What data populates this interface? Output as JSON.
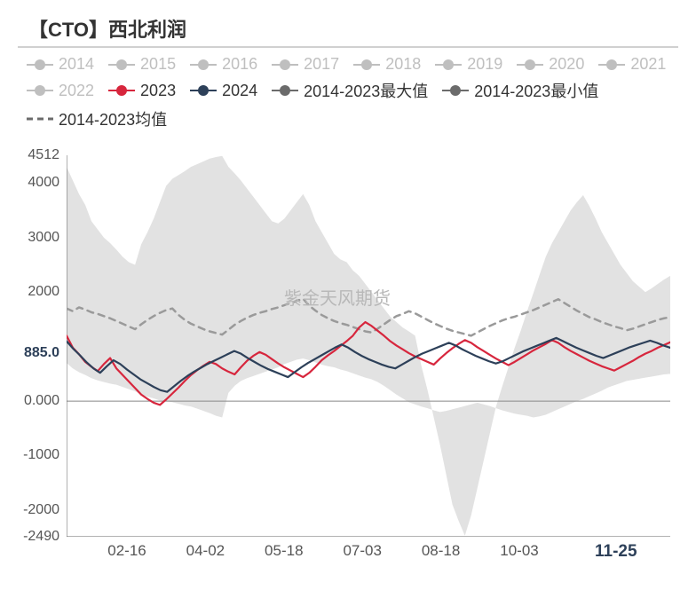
{
  "title": "【CTO】西北利润",
  "watermark": "紫金天风期货",
  "legend": {
    "inactive_color": "#bfbfbf",
    "items": [
      {
        "label": "2014",
        "type": "circle-line",
        "color": "#bfbfbf",
        "active": false
      },
      {
        "label": "2015",
        "type": "circle-line",
        "color": "#bfbfbf",
        "active": false
      },
      {
        "label": "2016",
        "type": "circle-line",
        "color": "#bfbfbf",
        "active": false
      },
      {
        "label": "2017",
        "type": "circle-line",
        "color": "#bfbfbf",
        "active": false
      },
      {
        "label": "2018",
        "type": "circle-line",
        "color": "#bfbfbf",
        "active": false
      },
      {
        "label": "2019",
        "type": "circle-line",
        "color": "#bfbfbf",
        "active": false
      },
      {
        "label": "2020",
        "type": "circle-line",
        "color": "#bfbfbf",
        "active": false
      },
      {
        "label": "2021",
        "type": "circle-line",
        "color": "#bfbfbf",
        "active": false
      },
      {
        "label": "2022",
        "type": "circle-line",
        "color": "#bfbfbf",
        "active": false
      },
      {
        "label": "2023",
        "type": "circle-line",
        "color": "#d7263d",
        "active": true
      },
      {
        "label": "2024",
        "type": "circle-line",
        "color": "#2d4059",
        "active": true
      },
      {
        "label": "2014-2023最大值",
        "type": "circle-line",
        "color": "#6b6b6b",
        "active": true
      },
      {
        "label": "2014-2023最小值",
        "type": "circle-line",
        "color": "#6b6b6b",
        "active": true
      },
      {
        "label": "2014-2023均值",
        "type": "dash-line",
        "color": "#6b6b6b",
        "active": true
      }
    ]
  },
  "chart": {
    "type": "line",
    "background_color": "#ffffff",
    "range_fill_color": "#e2e2e2",
    "grid": false,
    "x_axis": {
      "ticks": [
        {
          "pos": 0.1,
          "label": "02-16"
        },
        {
          "pos": 0.23,
          "label": "04-02"
        },
        {
          "pos": 0.36,
          "label": "05-18"
        },
        {
          "pos": 0.49,
          "label": "07-03"
        },
        {
          "pos": 0.62,
          "label": "08-18"
        },
        {
          "pos": 0.75,
          "label": "10-03"
        },
        {
          "pos": 0.91,
          "label": "11-25",
          "emph": true
        }
      ]
    },
    "y_axis": {
      "min": -2490,
      "max": 4512,
      "ticks": [
        {
          "value": 4512,
          "label": "4512"
        },
        {
          "value": 4000,
          "label": "4000"
        },
        {
          "value": 3000,
          "label": "3000"
        },
        {
          "value": 2000,
          "label": "2000"
        },
        {
          "value": 885,
          "label": "885.0",
          "emph": true
        },
        {
          "value": 0,
          "label": "0.000"
        },
        {
          "value": -1000,
          "label": "-1000"
        },
        {
          "value": -2000,
          "label": "-2000"
        },
        {
          "value": -2490,
          "label": "-2490"
        }
      ]
    },
    "series": {
      "max_2014_2023": {
        "color": "#6b6b6b",
        "width": 1,
        "data": [
          4300,
          4050,
          3800,
          3600,
          3300,
          3150,
          3000,
          2900,
          2780,
          2650,
          2550,
          2500,
          2880,
          3100,
          3350,
          3650,
          3950,
          4080,
          4150,
          4220,
          4300,
          4350,
          4400,
          4450,
          4480,
          4500,
          4300,
          4180,
          4050,
          3900,
          3750,
          3600,
          3450,
          3300,
          3260,
          3350,
          3500,
          3650,
          3800,
          3600,
          3300,
          3100,
          2900,
          2700,
          2600,
          2550,
          2400,
          2300,
          2150,
          2000,
          1850,
          1700,
          1550,
          1450,
          1350,
          1280,
          1200,
          650,
          200,
          -300,
          -800,
          -1350,
          -1900,
          -2200,
          -2470,
          -2100,
          -1600,
          -1100,
          -600,
          -100,
          270,
          620,
          980,
          1300,
          1650,
          1980,
          2320,
          2650,
          2900,
          3100,
          3300,
          3500,
          3650,
          3780,
          3580,
          3350,
          3100,
          2900,
          2700,
          2500,
          2350,
          2200,
          2100,
          2000,
          2070,
          2150,
          2230,
          2300
        ]
      },
      "min_2014_2023": {
        "color": "#6b6b6b",
        "width": 1,
        "data": [
          700,
          600,
          530,
          480,
          420,
          380,
          350,
          320,
          300,
          260,
          220,
          180,
          120,
          80,
          50,
          10,
          0,
          -20,
          -50,
          -80,
          -100,
          -140,
          -180,
          -220,
          -270,
          -300,
          150,
          280,
          370,
          420,
          460,
          500,
          540,
          580,
          620,
          680,
          720,
          760,
          780,
          750,
          710,
          670,
          640,
          620,
          580,
          550,
          510,
          470,
          430,
          400,
          350,
          280,
          200,
          120,
          50,
          -20,
          -60,
          -100,
          -130,
          -170,
          -200,
          -180,
          -150,
          -120,
          -90,
          -60,
          -30,
          -60,
          -90,
          -130,
          -170,
          -200,
          -230,
          -250,
          -270,
          -300,
          -280,
          -250,
          -200,
          -150,
          -100,
          -50,
          0,
          40,
          90,
          140,
          190,
          250,
          290,
          330,
          370,
          390,
          410,
          430,
          450,
          470,
          490,
          500
        ]
      },
      "mean_2014_2023": {
        "color": "#9a9a9a",
        "width": 2.5,
        "dash": "7,6",
        "data": [
          1700,
          1650,
          1720,
          1680,
          1630,
          1600,
          1560,
          1520,
          1470,
          1420,
          1370,
          1320,
          1410,
          1490,
          1560,
          1620,
          1670,
          1700,
          1580,
          1490,
          1420,
          1370,
          1320,
          1280,
          1250,
          1220,
          1310,
          1400,
          1470,
          1530,
          1580,
          1620,
          1650,
          1690,
          1720,
          1760,
          1800,
          1840,
          1880,
          1750,
          1660,
          1580,
          1520,
          1470,
          1430,
          1400,
          1360,
          1320,
          1280,
          1260,
          1330,
          1410,
          1490,
          1560,
          1600,
          1650,
          1610,
          1550,
          1490,
          1430,
          1380,
          1330,
          1290,
          1260,
          1230,
          1200,
          1260,
          1320,
          1380,
          1430,
          1480,
          1520,
          1550,
          1590,
          1630,
          1670,
          1720,
          1770,
          1820,
          1870,
          1800,
          1730,
          1660,
          1600,
          1540,
          1500,
          1450,
          1410,
          1370,
          1340,
          1300,
          1330,
          1370,
          1410,
          1450,
          1490,
          1520,
          1540
        ]
      },
      "y2023": {
        "color": "#d7263d",
        "width": 2.2,
        "data": [
          1200,
          980,
          860,
          720,
          630,
          550,
          680,
          790,
          600,
          480,
          360,
          240,
          120,
          40,
          -30,
          -70,
          30,
          140,
          250,
          370,
          480,
          570,
          650,
          720,
          680,
          600,
          540,
          490,
          620,
          740,
          830,
          900,
          850,
          770,
          690,
          620,
          560,
          500,
          440,
          520,
          630,
          750,
          840,
          920,
          1010,
          1100,
          1200,
          1350,
          1450,
          1380,
          1290,
          1200,
          1100,
          1020,
          950,
          880,
          820,
          770,
          720,
          670,
          780,
          880,
          970,
          1050,
          1120,
          1070,
          990,
          920,
          850,
          780,
          720,
          660,
          720,
          790,
          860,
          930,
          990,
          1050,
          1120,
          1070,
          990,
          920,
          860,
          800,
          740,
          690,
          640,
          600,
          560,
          620,
          680,
          740,
          810,
          870,
          920,
          980,
          1030,
          1080
        ]
      },
      "y2024": {
        "color": "#2d4059",
        "width": 2.2,
        "data": [
          1100,
          960,
          840,
          710,
          600,
          520,
          640,
          750,
          680,
          580,
          490,
          400,
          330,
          260,
          200,
          170,
          270,
          370,
          460,
          540,
          610,
          680,
          740,
          800,
          860,
          920,
          870,
          790,
          720,
          650,
          590,
          540,
          490,
          440,
          530,
          620,
          700,
          770,
          840,
          910,
          980,
          1040,
          980,
          900,
          830,
          770,
          720,
          670,
          630,
          600,
          670,
          740,
          810,
          870,
          920,
          970,
          1020,
          1070,
          1020,
          950,
          890,
          830,
          780,
          730,
          690,
          730,
          790,
          850,
          910,
          960,
          1010,
          1060,
          1110,
          1160,
          1100,
          1040,
          980,
          930,
          880,
          830,
          790,
          840,
          890,
          940,
          990,
          1030,
          1070,
          1110,
          1070,
          1020,
          980
        ]
      }
    }
  },
  "colors": {
    "title": "#333333",
    "axis_text": "#555555",
    "axis_line": "#666666",
    "emph": "#2d4059"
  }
}
